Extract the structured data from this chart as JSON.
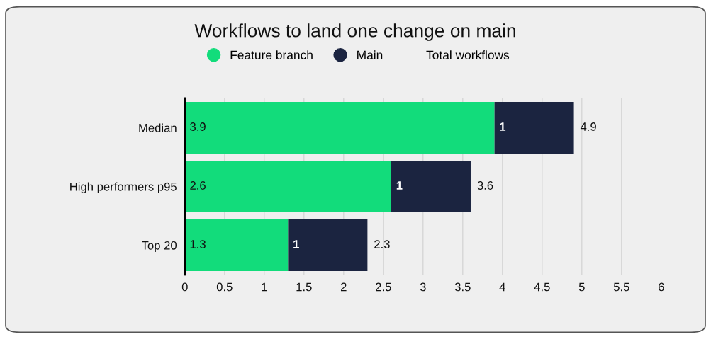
{
  "chart_data": {
    "type": "bar",
    "orientation": "horizontal",
    "stacked": true,
    "title": "Workflows to land one change on main",
    "categories": [
      "Median",
      "High performers p95",
      "Top 20"
    ],
    "series": [
      {
        "name": "Feature branch",
        "color": "#12dc7b",
        "values": [
          3.9,
          2.6,
          1.3
        ]
      },
      {
        "name": "Main",
        "color": "#1b2440",
        "values": [
          1,
          1,
          1
        ]
      },
      {
        "name": "Total workflows",
        "values": [
          null,
          null,
          null
        ]
      }
    ],
    "totals": [
      "4.9",
      "3.6",
      "2.3"
    ],
    "data_labels": true,
    "xlim": [
      0,
      6
    ],
    "xticks": [
      0,
      0.5,
      1,
      1.5,
      2,
      2.5,
      3,
      3.5,
      4,
      4.5,
      5,
      5.5,
      6
    ],
    "grid": "x",
    "legend": "top"
  }
}
